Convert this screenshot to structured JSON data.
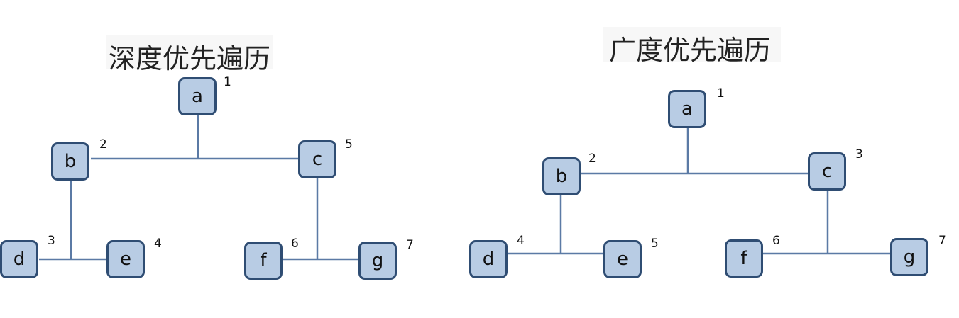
{
  "dfs": {
    "title": "深度优先遍历",
    "nodes": [
      {
        "label": "a",
        "order": "1"
      },
      {
        "label": "b",
        "order": "2"
      },
      {
        "label": "c",
        "order": "5"
      },
      {
        "label": "d",
        "order": "3"
      },
      {
        "label": "e",
        "order": "4"
      },
      {
        "label": "f",
        "order": "6"
      },
      {
        "label": "g",
        "order": "7"
      }
    ]
  },
  "bfs": {
    "title": "广度优先遍历",
    "nodes": [
      {
        "label": "a",
        "order": "1"
      },
      {
        "label": "b",
        "order": "2"
      },
      {
        "label": "c",
        "order": "3"
      },
      {
        "label": "d",
        "order": "4"
      },
      {
        "label": "e",
        "order": "5"
      },
      {
        "label": "f",
        "order": "6"
      },
      {
        "label": "g",
        "order": "7"
      }
    ]
  }
}
